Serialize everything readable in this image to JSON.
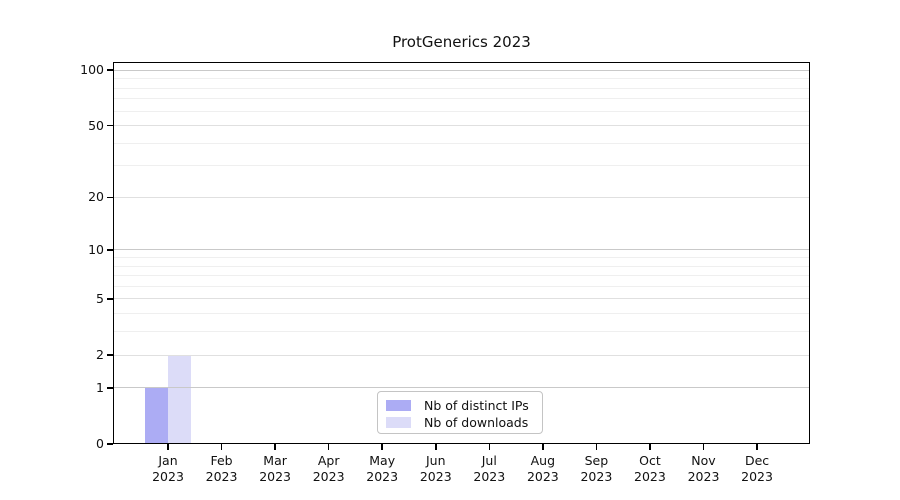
{
  "chart_data": {
    "type": "bar",
    "title": "ProtGenerics 2023",
    "categories": [
      "Jan",
      "Feb",
      "Mar",
      "Apr",
      "May",
      "Jun",
      "Jul",
      "Aug",
      "Sep",
      "Oct",
      "Nov",
      "Dec"
    ],
    "category_year": "2023",
    "series": [
      {
        "name": "Nb of distinct IPs",
        "color": "#acacf4",
        "values": [
          1,
          0,
          0,
          0,
          0,
          0,
          0,
          0,
          0,
          0,
          0,
          0
        ]
      },
      {
        "name": "Nb of downloads",
        "color": "#dcdcf8",
        "values": [
          2,
          0,
          0,
          0,
          0,
          0,
          0,
          0,
          0,
          0,
          0,
          0
        ]
      }
    ],
    "y_scale": "log1p",
    "ylim": [
      0,
      111
    ],
    "y_tick_values": [
      0,
      1,
      2,
      5,
      10,
      20,
      50,
      100
    ],
    "y_major_gridlines": [
      1,
      10,
      100
    ],
    "y_mid_gridlines": [
      2,
      5,
      20,
      50
    ],
    "y_minor_gridlines": [
      3,
      4,
      6,
      7,
      8,
      9,
      30,
      40,
      60,
      70,
      80,
      90
    ],
    "grid": "horizontal",
    "legend_position": "bottom-center",
    "colors": {
      "axis": "#000000",
      "grid_major": "#c9c9c9",
      "grid_mid": "#e0e0e0",
      "grid_minor": "#efefef",
      "background": "#ffffff"
    }
  }
}
